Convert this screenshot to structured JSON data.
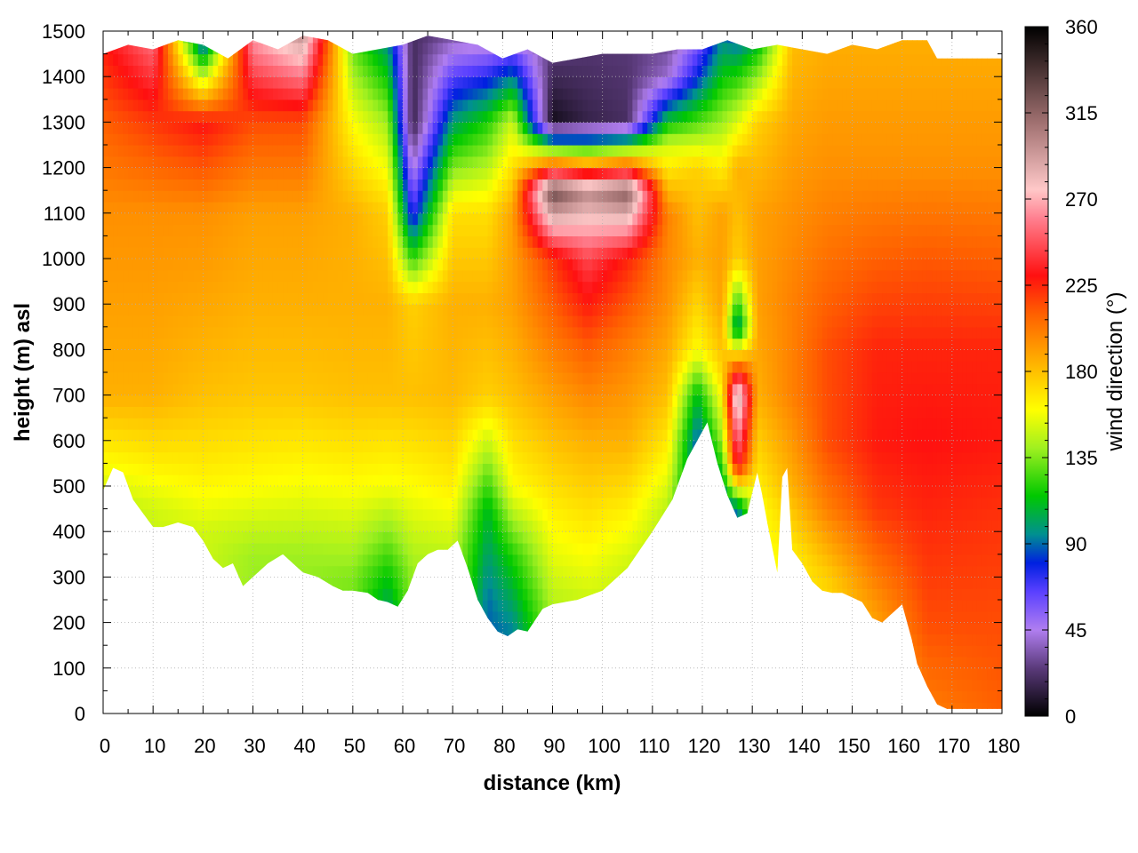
{
  "chart_data": {
    "type": "heatmap",
    "title": "",
    "xlabel": "distance (km)",
    "ylabel": "height (m) asl",
    "colorbar_label": "wind direction (°)",
    "xlim": [
      0,
      180
    ],
    "ylim": [
      0,
      1500
    ],
    "clim": [
      0,
      360
    ],
    "grid": true,
    "x_ticks": [
      "0",
      "10",
      "20",
      "30",
      "40",
      "50",
      "60",
      "70",
      "80",
      "90",
      "100",
      "110",
      "120",
      "130",
      "140",
      "150",
      "160",
      "170",
      "180"
    ],
    "y_ticks": [
      "0",
      "100",
      "200",
      "300",
      "400",
      "500",
      "600",
      "700",
      "800",
      "900",
      "1000",
      "1100",
      "1200",
      "1300",
      "1400",
      "1500"
    ],
    "colorbar_ticks": [
      "0",
      "45",
      "90",
      "135",
      "180",
      "225",
      "270",
      "315",
      "360"
    ],
    "colorbar_stops": [
      {
        "value": 0,
        "color": "#000000"
      },
      {
        "value": 25,
        "color": "#5a3a7a"
      },
      {
        "value": 45,
        "color": "#b07ef0"
      },
      {
        "value": 65,
        "color": "#5a40ff"
      },
      {
        "value": 80,
        "color": "#0020e0"
      },
      {
        "value": 95,
        "color": "#009090"
      },
      {
        "value": 115,
        "color": "#00c800"
      },
      {
        "value": 140,
        "color": "#a0f020"
      },
      {
        "value": 160,
        "color": "#ffff00"
      },
      {
        "value": 185,
        "color": "#ffb000"
      },
      {
        "value": 210,
        "color": "#ff6000"
      },
      {
        "value": 230,
        "color": "#ff1010"
      },
      {
        "value": 260,
        "color": "#ff8090"
      },
      {
        "value": 275,
        "color": "#ffc8c8"
      },
      {
        "value": 310,
        "color": "#a07070"
      },
      {
        "value": 360,
        "color": "#000000"
      }
    ],
    "terrain_profile": {
      "x": [
        0,
        2,
        4,
        6,
        8,
        10,
        12,
        15,
        18,
        20,
        22,
        24,
        26,
        28,
        30,
        33,
        36,
        40,
        43,
        46,
        48,
        50,
        53,
        55,
        57,
        59,
        61,
        63,
        65,
        67,
        69,
        71,
        73,
        75,
        77,
        79,
        81,
        83,
        85,
        88,
        90,
        95,
        100,
        105,
        110,
        114,
        117,
        119,
        121,
        123,
        125,
        127,
        129,
        131,
        132,
        133,
        135,
        136,
        137,
        138,
        140,
        142,
        144,
        146,
        148,
        150,
        152,
        154,
        156,
        158,
        160,
        162,
        163,
        165,
        167,
        169,
        180
      ],
      "height": [
        490,
        540,
        530,
        470,
        440,
        410,
        410,
        420,
        410,
        380,
        340,
        320,
        330,
        280,
        300,
        330,
        350,
        310,
        300,
        280,
        270,
        270,
        265,
        250,
        245,
        235,
        270,
        330,
        350,
        360,
        360,
        380,
        320,
        250,
        210,
        180,
        170,
        185,
        180,
        230,
        240,
        250,
        270,
        320,
        400,
        470,
        560,
        600,
        640,
        550,
        480,
        430,
        440,
        530,
        480,
        420,
        310,
        520,
        540,
        360,
        330,
        290,
        270,
        265,
        265,
        255,
        245,
        210,
        200,
        220,
        240,
        160,
        110,
        60,
        20,
        10,
        10
      ]
    },
    "direction_profiles": [
      {
        "x": 0,
        "heights": [
          0,
          450,
          550,
          700,
          900,
          1100,
          1300,
          1500
        ],
        "directions": [
          140,
          145,
          160,
          185,
          190,
          195,
          210,
          230
        ]
      },
      {
        "x": 10,
        "heights": [
          0,
          450,
          550,
          700,
          900,
          1100,
          1300,
          1500
        ],
        "directions": [
          140,
          150,
          165,
          185,
          190,
          195,
          220,
          260
        ]
      },
      {
        "x": 20,
        "heights": [
          0,
          400,
          500,
          700,
          900,
          1100,
          1300,
          1500
        ],
        "directions": [
          145,
          150,
          162,
          180,
          188,
          195,
          230,
          60
        ]
      },
      {
        "x": 30,
        "heights": [
          0,
          350,
          500,
          700,
          900,
          1100,
          1300,
          1500
        ],
        "directions": [
          135,
          140,
          160,
          178,
          185,
          190,
          215,
          270
        ]
      },
      {
        "x": 40,
        "heights": [
          0,
          350,
          500,
          700,
          900,
          1100,
          1300,
          1500
        ],
        "directions": [
          130,
          140,
          158,
          178,
          185,
          190,
          215,
          300
        ]
      },
      {
        "x": 50,
        "heights": [
          0,
          300,
          500,
          700,
          900,
          1100,
          1300,
          1500
        ],
        "directions": [
          125,
          135,
          160,
          180,
          185,
          185,
          160,
          125
        ]
      },
      {
        "x": 57,
        "heights": [
          0,
          280,
          500,
          700,
          900,
          1100,
          1300,
          1500
        ],
        "directions": [
          55,
          110,
          158,
          180,
          185,
          175,
          140,
          90
        ]
      },
      {
        "x": 62,
        "heights": [
          0,
          320,
          500,
          700,
          900,
          1100,
          1300,
          1500
        ],
        "directions": [
          130,
          140,
          160,
          180,
          175,
          70,
          15,
          20
        ]
      },
      {
        "x": 70,
        "heights": [
          0,
          370,
          500,
          700,
          900,
          1100,
          1300,
          1500
        ],
        "directions": [
          135,
          148,
          165,
          182,
          185,
          170,
          100,
          30
        ]
      },
      {
        "x": 77,
        "heights": [
          0,
          250,
          450,
          700,
          900,
          1100,
          1300,
          1500
        ],
        "directions": [
          85,
          90,
          110,
          175,
          185,
          170,
          120,
          30
        ]
      },
      {
        "x": 82,
        "heights": [
          0,
          200,
          350,
          500,
          700,
          900,
          1100,
          1300,
          1500
        ],
        "directions": [
          80,
          95,
          120,
          160,
          180,
          190,
          190,
          150,
          35
        ]
      },
      {
        "x": 90,
        "heights": [
          0,
          250,
          400,
          600,
          800,
          1000,
          1150,
          1300,
          1500
        ],
        "directions": [
          135,
          145,
          160,
          180,
          200,
          220,
          330,
          5,
          30
        ]
      },
      {
        "x": 97,
        "heights": [
          0,
          260,
          400,
          600,
          800,
          1000,
          1150,
          1300,
          1500
        ],
        "directions": [
          140,
          150,
          165,
          185,
          210,
          245,
          300,
          15,
          25
        ]
      },
      {
        "x": 105,
        "heights": [
          0,
          330,
          450,
          600,
          800,
          1000,
          1150,
          1300,
          1500
        ],
        "directions": [
          140,
          150,
          165,
          185,
          200,
          225,
          320,
          20,
          25
        ]
      },
      {
        "x": 113,
        "heights": [
          0,
          450,
          550,
          700,
          900,
          1100,
          1250,
          1400,
          1500
        ],
        "directions": [
          130,
          145,
          160,
          180,
          195,
          200,
          150,
          40,
          25
        ]
      },
      {
        "x": 119,
        "heights": [
          0,
          600,
          700,
          800,
          1000,
          1200,
          1400,
          1500
        ],
        "directions": [
          80,
          85,
          110,
          160,
          185,
          175,
          80,
          50
        ]
      },
      {
        "x": 124,
        "heights": [
          0,
          480,
          600,
          750,
          900,
          1100,
          1300,
          1500
        ],
        "directions": [
          85,
          95,
          140,
          175,
          190,
          190,
          140,
          90
        ]
      },
      {
        "x": 127,
        "heights": [
          0,
          450,
          550,
          700,
          850,
          1000,
          1200,
          1400,
          1500
        ],
        "directions": [
          80,
          90,
          240,
          300,
          90,
          175,
          185,
          120,
          80
        ]
      },
      {
        "x": 131,
        "heights": [
          0,
          450,
          550,
          700,
          900,
          1100,
          1300,
          1500
        ],
        "directions": [
          150,
          158,
          170,
          185,
          190,
          190,
          175,
          100
        ]
      },
      {
        "x": 138,
        "heights": [
          0,
          350,
          500,
          700,
          900,
          1100,
          1300,
          1500
        ],
        "directions": [
          155,
          165,
          185,
          200,
          200,
          195,
          188,
          180
        ]
      },
      {
        "x": 145,
        "heights": [
          0,
          300,
          450,
          600,
          800,
          1000,
          1200,
          1500
        ],
        "directions": [
          160,
          175,
          200,
          215,
          215,
          205,
          195,
          185
        ]
      },
      {
        "x": 155,
        "heights": [
          0,
          250,
          450,
          600,
          800,
          1000,
          1200,
          1500
        ],
        "directions": [
          170,
          195,
          220,
          228,
          225,
          210,
          195,
          185
        ]
      },
      {
        "x": 165,
        "heights": [
          0,
          200,
          450,
          600,
          800,
          1000,
          1200,
          1500
        ],
        "directions": [
          200,
          215,
          225,
          230,
          225,
          212,
          195,
          185
        ]
      },
      {
        "x": 180,
        "heights": [
          0,
          200,
          450,
          600,
          800,
          1000,
          1200,
          1500
        ],
        "directions": [
          210,
          215,
          222,
          228,
          225,
          210,
          195,
          185
        ]
      }
    ],
    "data_top": {
      "x": [
        0,
        5,
        10,
        15,
        20,
        25,
        30,
        35,
        40,
        45,
        50,
        55,
        60,
        65,
        70,
        75,
        80,
        85,
        90,
        95,
        100,
        105,
        110,
        115,
        120,
        125,
        130,
        135,
        140,
        145,
        150,
        155,
        160,
        165,
        167,
        180
      ],
      "height": [
        1450,
        1470,
        1460,
        1480,
        1470,
        1440,
        1480,
        1460,
        1490,
        1480,
        1450,
        1460,
        1470,
        1490,
        1480,
        1470,
        1440,
        1460,
        1430,
        1440,
        1450,
        1450,
        1450,
        1460,
        1460,
        1480,
        1460,
        1470,
        1460,
        1450,
        1470,
        1460,
        1480,
        1480,
        1440,
        1440
      ]
    }
  }
}
